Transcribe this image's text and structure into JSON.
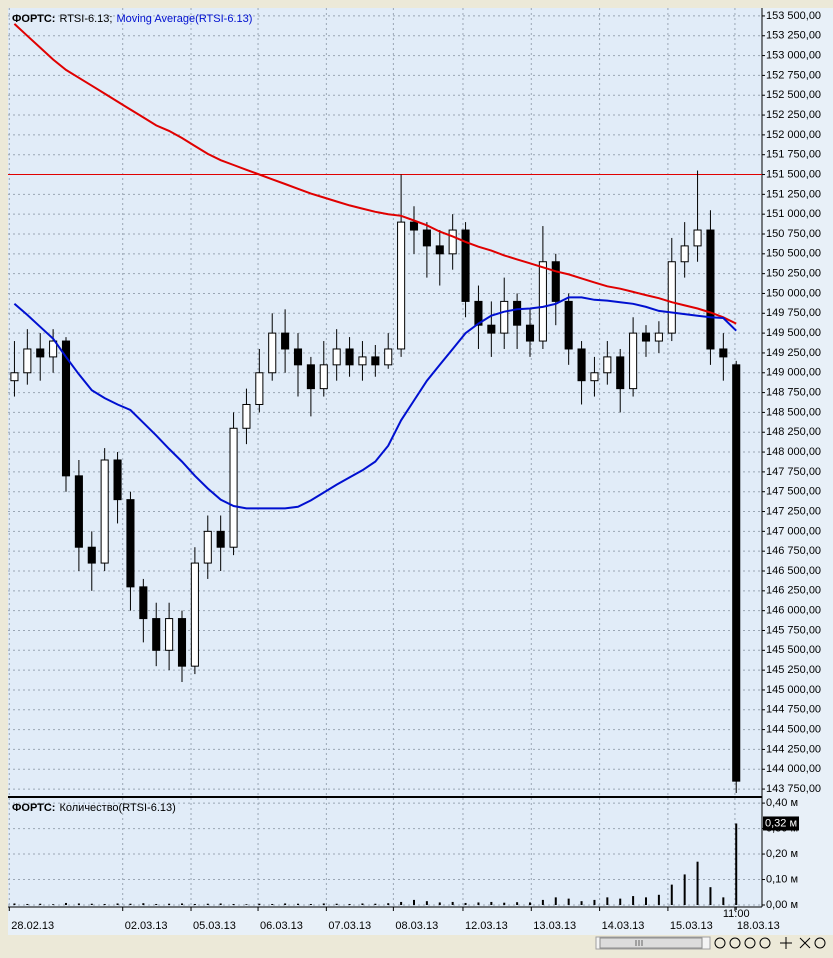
{
  "chart_data": [
    {
      "type": "candlestick",
      "title_prefix": "ФОРТС:",
      "title": "RTSI-6.13;",
      "indicator": "Moving Average(RTSI-6.13)",
      "open": [
        148900,
        149000,
        149300,
        149200,
        149400,
        147700,
        146800,
        146600,
        147900,
        147400,
        146300,
        145900,
        145500,
        145900,
        145300,
        146600,
        147000,
        146800,
        148300,
        148600,
        149000,
        149500,
        149300,
        149100,
        148800,
        149100,
        149300,
        149100,
        149200,
        149100,
        149300,
        150900,
        150800,
        150600,
        150500,
        150800,
        149900,
        149600,
        149500,
        149900,
        149600,
        149400,
        150400,
        149900,
        149300,
        148900,
        149000,
        149200,
        148800,
        149500,
        149400,
        149500,
        150400,
        150600,
        150800,
        149300,
        149100
      ],
      "high": [
        149400,
        149550,
        149500,
        149550,
        149450,
        147900,
        147000,
        148050,
        148000,
        147500,
        146400,
        146100,
        146100,
        146000,
        146800,
        147200,
        147200,
        148500,
        148800,
        149300,
        149750,
        149800,
        149500,
        149200,
        149400,
        149550,
        149450,
        149400,
        149350,
        149500,
        151500,
        151100,
        150900,
        150800,
        151000,
        150900,
        150100,
        149900,
        150200,
        150000,
        149800,
        150850,
        150500,
        150000,
        149400,
        149200,
        149400,
        149300,
        149700,
        149600,
        149650,
        150700,
        150900,
        151550,
        151050,
        149500,
        149150
      ],
      "low": [
        148700,
        148850,
        148900,
        149000,
        147500,
        146500,
        146250,
        146500,
        147100,
        146000,
        145600,
        145300,
        145250,
        145100,
        145200,
        146400,
        146500,
        146700,
        148100,
        148500,
        148900,
        149000,
        148700,
        148450,
        148700,
        148900,
        148950,
        148900,
        148950,
        149050,
        149200,
        150500,
        150200,
        150100,
        150300,
        149700,
        149300,
        149200,
        149300,
        149300,
        149200,
        149300,
        149600,
        149100,
        148600,
        148700,
        148850,
        148500,
        148700,
        149200,
        149250,
        149400,
        150200,
        150400,
        149100,
        148900,
        143700
      ],
      "close": [
        149000,
        149300,
        149200,
        149400,
        147700,
        146800,
        146600,
        147900,
        147400,
        146300,
        145900,
        145500,
        145900,
        145300,
        146600,
        147000,
        146800,
        148300,
        148600,
        149000,
        149500,
        149300,
        149100,
        148800,
        149100,
        149300,
        149100,
        149200,
        149100,
        149300,
        150900,
        150800,
        150600,
        150500,
        150800,
        149900,
        149600,
        149500,
        149900,
        149600,
        149400,
        150400,
        149900,
        149300,
        148900,
        149000,
        149200,
        148800,
        149500,
        149400,
        149500,
        150400,
        150600,
        150800,
        149300,
        149200,
        143850
      ],
      "up_color": "#ffffff",
      "down_color": "#000000",
      "ma": [
        {
          "color": "#e00000",
          "values": [
            153400,
            153250,
            153100,
            152950,
            152820,
            152720,
            152620,
            152520,
            152420,
            152320,
            152220,
            152120,
            152050,
            151960,
            151860,
            151760,
            151680,
            151620,
            151560,
            151500,
            151440,
            151380,
            151320,
            151260,
            151210,
            151160,
            151110,
            151070,
            151030,
            151000,
            150980,
            150920,
            150860,
            150780,
            150720,
            150650,
            150590,
            150540,
            150480,
            150430,
            150380,
            150330,
            150280,
            150240,
            150190,
            150140,
            150090,
            150060,
            150020,
            149980,
            149940,
            149890,
            149850,
            149810,
            149760,
            149700,
            149620
          ]
        },
        {
          "color": "#0010d0",
          "values": [
            149870,
            149730,
            149580,
            149430,
            149200,
            148980,
            148780,
            148680,
            148600,
            148530,
            148370,
            148210,
            148040,
            147880,
            147700,
            147540,
            147400,
            147320,
            147290,
            147290,
            147290,
            147290,
            147310,
            147390,
            147490,
            147590,
            147680,
            147770,
            147880,
            148080,
            148400,
            148650,
            148900,
            149100,
            149300,
            149500,
            149620,
            149720,
            149770,
            149800,
            149810,
            149830,
            149870,
            149950,
            149950,
            149920,
            149910,
            149890,
            149870,
            149830,
            149780,
            149760,
            149740,
            149720,
            149700,
            149690,
            149530
          ]
        }
      ],
      "level_line": {
        "value": 151500,
        "color": "#e00000"
      },
      "xlim": [
        -0.5,
        58
      ],
      "xticks": [
        {
          "value": -0.4,
          "label": "28.02.13"
        },
        {
          "value": 8.4,
          "label": "02.03.13"
        },
        {
          "value": 13.7,
          "label": "05.03.13"
        },
        {
          "value": 18.9,
          "label": "06.03.13"
        },
        {
          "value": 24.2,
          "label": "07.03.13"
        },
        {
          "value": 29.4,
          "label": "08.03.13"
        },
        {
          "value": 34.8,
          "label": "12.03.13"
        },
        {
          "value": 40.1,
          "label": "13.03.13"
        },
        {
          "value": 45.4,
          "label": "14.03.13"
        },
        {
          "value": 50.7,
          "label": "15.03.13"
        },
        {
          "value": 55.9,
          "label": "18.03.13"
        }
      ],
      "xticks_time": [
        {
          "value": 56,
          "label": "11:00"
        }
      ],
      "ylim": [
        143650,
        153600
      ],
      "yticks": [
        {
          "value": 153500,
          "label": "153 500,00"
        },
        {
          "value": 153250,
          "label": "153 250,00"
        },
        {
          "value": 153000,
          "label": "153 000,00"
        },
        {
          "value": 152750,
          "label": "152 750,00"
        },
        {
          "value": 152500,
          "label": "152 500,00"
        },
        {
          "value": 152250,
          "label": "152 250,00"
        },
        {
          "value": 152000,
          "label": "152 000,00"
        },
        {
          "value": 151750,
          "label": "151 750,00"
        },
        {
          "value": 151500,
          "label": "151 500,00"
        },
        {
          "value": 151250,
          "label": "151 250,00"
        },
        {
          "value": 151000,
          "label": "151 000,00"
        },
        {
          "value": 150750,
          "label": "150 750,00"
        },
        {
          "value": 150500,
          "label": "150 500,00"
        },
        {
          "value": 150250,
          "label": "150 250,00"
        },
        {
          "value": 150000,
          "label": "150 000,00"
        },
        {
          "value": 149750,
          "label": "149 750,00"
        },
        {
          "value": 149500,
          "label": "149 500,00"
        },
        {
          "value": 149250,
          "label": "149 250,00"
        },
        {
          "value": 149000,
          "label": "149 000,00"
        },
        {
          "value": 148750,
          "label": "148 750,00"
        },
        {
          "value": 148500,
          "label": "148 500,00"
        },
        {
          "value": 148250,
          "label": "148 250,00"
        },
        {
          "value": 148000,
          "label": "148 000,00"
        },
        {
          "value": 147750,
          "label": "147 750,00"
        },
        {
          "value": 147500,
          "label": "147 500,00"
        },
        {
          "value": 147250,
          "label": "147 250,00"
        },
        {
          "value": 147000,
          "label": "147 000,00"
        },
        {
          "value": 146750,
          "label": "146 750,00"
        },
        {
          "value": 146500,
          "label": "146 500,00"
        },
        {
          "value": 146250,
          "label": "146 250,00"
        },
        {
          "value": 146000,
          "label": "146 000,00"
        },
        {
          "value": 145750,
          "label": "145 750,00"
        },
        {
          "value": 145500,
          "label": "145 500,00"
        },
        {
          "value": 145250,
          "label": "145 250,00"
        },
        {
          "value": 145000,
          "label": "145 000,00"
        },
        {
          "value": 144750,
          "label": "144 750,00"
        },
        {
          "value": 144500,
          "label": "144 500,00"
        },
        {
          "value": 144250,
          "label": "144 250,00"
        },
        {
          "value": 144000,
          "label": "144 000,00"
        },
        {
          "value": 143750,
          "label": "143 750,00"
        }
      ],
      "grid": true
    },
    {
      "type": "bar",
      "title_prefix": "ФОРТС:",
      "title": "Количество(RTSI-6.13)",
      "values": [
        0.006,
        0.004,
        0.005,
        0.003,
        0.008,
        0.006,
        0.005,
        0.004,
        0.006,
        0.005,
        0.007,
        0.004,
        0.005,
        0.006,
        0.004,
        0.005,
        0.006,
        0.004,
        0.003,
        0.005,
        0.004,
        0.006,
        0.005,
        0.004,
        0.006,
        0.005,
        0.004,
        0.006,
        0.005,
        0.007,
        0.012,
        0.02,
        0.015,
        0.01,
        0.012,
        0.008,
        0.01,
        0.012,
        0.009,
        0.011,
        0.01,
        0.02,
        0.03,
        0.025,
        0.015,
        0.02,
        0.03,
        0.025,
        0.035,
        0.03,
        0.04,
        0.08,
        0.12,
        0.17,
        0.07,
        0.03,
        0.32
      ],
      "value_labels": [
        null,
        null,
        null,
        null,
        null,
        null,
        null,
        null,
        null,
        null,
        null,
        null,
        null,
        null,
        null,
        null,
        null,
        null,
        null,
        null,
        null,
        null,
        null,
        null,
        null,
        null,
        null,
        null,
        null,
        null,
        null,
        null,
        null,
        null,
        null,
        null,
        null,
        null,
        null,
        null,
        null,
        null,
        null,
        null,
        null,
        null,
        null,
        null,
        null,
        null,
        null,
        null,
        null,
        null,
        null,
        null,
        "0,32 м"
      ],
      "color": "#000000",
      "xlim": [
        -0.5,
        58
      ],
      "ylim": [
        0,
        0.42
      ],
      "yticks": [
        {
          "value": 0.4,
          "label": "0,40 м"
        },
        {
          "value": 0.3,
          "label": "0,30 м"
        },
        {
          "value": 0.2,
          "label": "0,20 м"
        },
        {
          "value": 0.1,
          "label": "0,10 м"
        },
        {
          "value": 0,
          "label": "0,00 м"
        }
      ],
      "grid": true
    }
  ]
}
